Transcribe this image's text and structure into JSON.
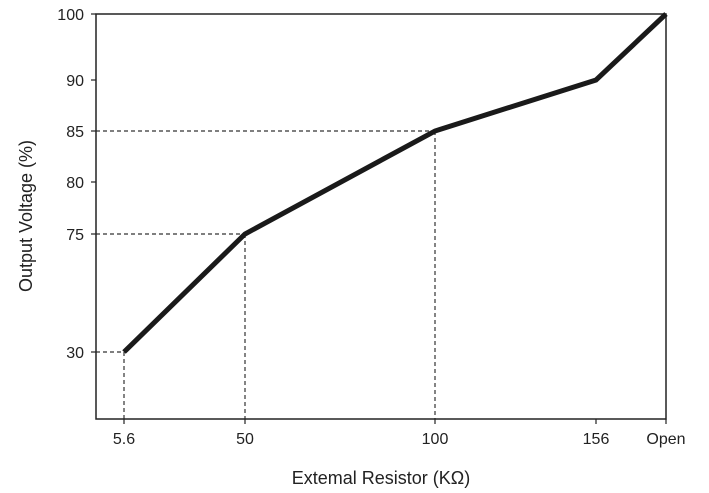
{
  "chart_data": {
    "type": "line",
    "xlabel": "Extemal Resistor (KΩ)",
    "ylabel": "Output Voltage (%)",
    "x_tick_labels": [
      "5.6",
      "50",
      "100",
      "156",
      "Open"
    ],
    "y_tick_labels": [
      "100",
      "90",
      "85",
      "80",
      "75",
      "30"
    ],
    "series": [
      {
        "points": [
          {
            "x": "5.6",
            "y": 30
          },
          {
            "x": "50",
            "y": 75
          },
          {
            "x": "100",
            "y": 85
          },
          {
            "x": "156",
            "y": 90
          },
          {
            "x": "Open",
            "y": 100
          }
        ]
      }
    ],
    "reference_lines": [
      {
        "x": "5.6",
        "y": 30
      },
      {
        "x": "50",
        "y": 75
      },
      {
        "x": "100",
        "y": 85
      }
    ],
    "grid": false,
    "line_color": "#1a1a1a"
  }
}
